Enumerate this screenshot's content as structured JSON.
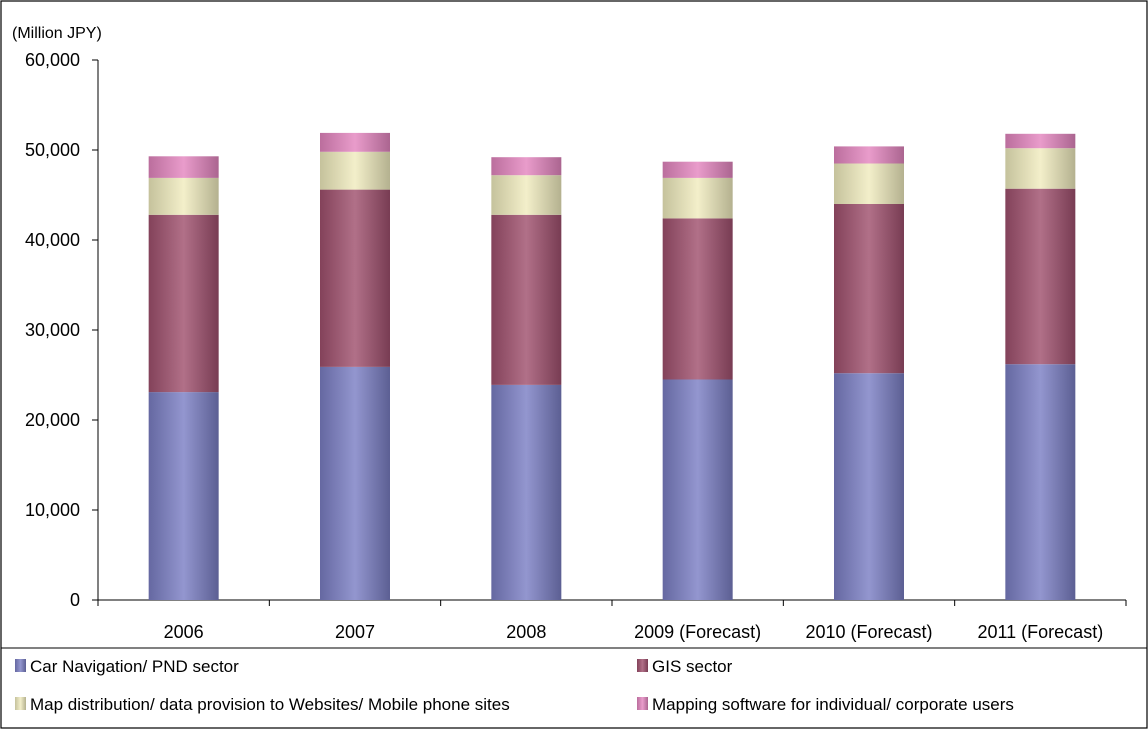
{
  "chart_data": {
    "type": "bar",
    "stacked": true,
    "unit_label": "(Million JPY)",
    "categories": [
      "2006",
      "2007",
      "2008",
      "2009 (Forecast)",
      "2010 (Forecast)",
      "2011 (Forecast)"
    ],
    "series": [
      {
        "name": "Car Navigation/ PND sector",
        "color": "#7b7fc4",
        "values": [
          23100,
          25900,
          23900,
          24500,
          25200,
          26200
        ]
      },
      {
        "name": "GIS sector",
        "color": "#a0506e",
        "values": [
          19700,
          19700,
          18900,
          17900,
          18800,
          19500
        ]
      },
      {
        "name": "Map distribution/ data provision to Websites/ Mobile phone sites",
        "color": "#f0ecbe",
        "values": [
          4100,
          4200,
          4400,
          4500,
          4500,
          4500
        ]
      },
      {
        "name": "Mapping software for individual/ corporate users",
        "color": "#e486c0",
        "values": [
          2400,
          2100,
          2000,
          1800,
          1900,
          1600
        ]
      }
    ],
    "ylim": [
      0,
      60000
    ],
    "yticks": [
      0,
      10000,
      20000,
      30000,
      40000,
      50000,
      60000
    ],
    "ytick_labels": [
      "0",
      "10,000",
      "20,000",
      "30,000",
      "40,000",
      "50,000",
      "60,000"
    ],
    "grid": false,
    "legend_position": "bottom"
  }
}
